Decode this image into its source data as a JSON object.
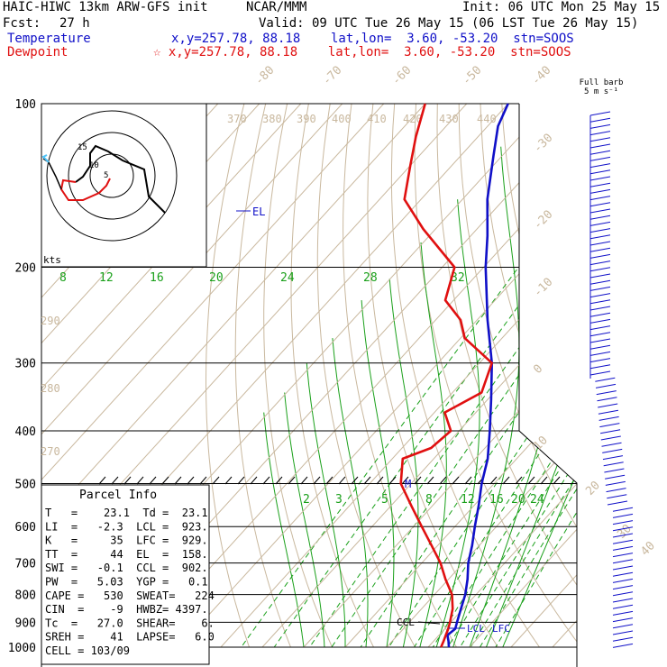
{
  "header": {
    "title_left": "HAIC-HIWC 13km ARW-GFS init",
    "org": "NCAR/MMM",
    "init": "Init: 06 UTC Mon 25 May 15",
    "fcst_label": "Fcst:",
    "fcst_value": "27 h",
    "valid": "Valid: 09 UTC Tue 26 May 15 (06 LST Tue 26 May 15)",
    "temp_label": "Temperature",
    "temp_info": "x,y=257.78, 88.18    lat,lon=  3.60, -53.20  stn=SOOS",
    "dew_label": "Dewpoint",
    "dew_info": "☆ x,y=257.78, 88.18    lat,lon=  3.60, -53.20  stn=SOOS",
    "barb_title_1": "Full barb",
    "barb_title_2": "5 m s⁻¹"
  },
  "hodograph": {
    "units": "kts",
    "ring_labels": [
      "5",
      "10",
      "15"
    ]
  },
  "annotations": {
    "el": "EL",
    "m": "M",
    "ccl": "CCL",
    "lcl": "LCL",
    "lfc": "LFC"
  },
  "parcel_info": {
    "title": "Parcel Info",
    "rows": [
      "T   =    23.1  Td =  23.1",
      "LI  =   -2.3  LCL =  923.",
      "K   =     35  LFC =  929.",
      "TT  =     44  EL  =  158.",
      "SWI =   -0.1  CCL =  902.",
      "PW  =   5.03  YGP =   0.1",
      "CAPE =   530  SWEAT=   224",
      "CIN  =    -9  HWBZ= 4397.",
      "Tc  =   27.0  SHEAR=    6.",
      "SREH =    41  LAPSE=   6.0",
      "CELL = 103/09"
    ]
  },
  "chart_data": {
    "type": "line",
    "plot": "skew-T log-p",
    "pressure_levels": [
      100,
      200,
      300,
      400,
      500,
      600,
      700,
      800,
      900,
      1000
    ],
    "pressure_tick_labels": [
      "100",
      "200",
      "300",
      "400",
      "500",
      "600",
      "700",
      "800",
      "900",
      "1000"
    ],
    "isotherm_labels": [
      "-80",
      "-70",
      "-60",
      "-50",
      "-40",
      "-30",
      "-20",
      "-10",
      "0",
      "10",
      "20",
      "30",
      "40"
    ],
    "theta_labels": [
      "370",
      "380",
      "390",
      "400",
      "410",
      "420",
      "430",
      "440",
      "290",
      "280",
      "270"
    ],
    "mixing_ratio_labels_upper": [
      "8",
      "12",
      "16",
      "20",
      "24",
      "28",
      "32"
    ],
    "mixing_ratio_labels_lower": [
      "2",
      "3",
      "5",
      "8",
      "12",
      "16",
      "20",
      "24"
    ],
    "series": [
      {
        "name": "Temperature",
        "color": "#1010c8",
        "pressure": [
          1000,
          975,
          950,
          925,
          900,
          850,
          800,
          750,
          700,
          650,
          600,
          550,
          500,
          450,
          400,
          350,
          300,
          250,
          200,
          175,
          150,
          125,
          110,
          100
        ],
        "temp_c": [
          25.0,
          23.6,
          22.0,
          22.5,
          21.5,
          19.5,
          17.4,
          14.6,
          11.2,
          8.3,
          4.8,
          1.2,
          -3.0,
          -7.0,
          -12.6,
          -19.2,
          -27.0,
          -37.5,
          -49.5,
          -56.0,
          -64.0,
          -72.0,
          -77.5,
          -80.0
        ]
      },
      {
        "name": "Dewpoint",
        "color": "#e01010",
        "pressure": [
          1000,
          975,
          950,
          925,
          900,
          850,
          800,
          750,
          700,
          650,
          600,
          550,
          500,
          450,
          430,
          400,
          370,
          340,
          300,
          270,
          250,
          230,
          200,
          170,
          150,
          130,
          115,
          100
        ],
        "temp_c": [
          23.1,
          22.4,
          21.6,
          20.8,
          19.8,
          17.5,
          14.2,
          9.3,
          4.5,
          -1.5,
          -8.0,
          -15.0,
          -22.5,
          -27.5,
          -23.0,
          -22.0,
          -27.5,
          -23.0,
          -27.0,
          -39.0,
          -44.0,
          -52.0,
          -57.0,
          -73.0,
          -84.0,
          -90.0,
          -95.0,
          -100.0
        ]
      }
    ]
  }
}
